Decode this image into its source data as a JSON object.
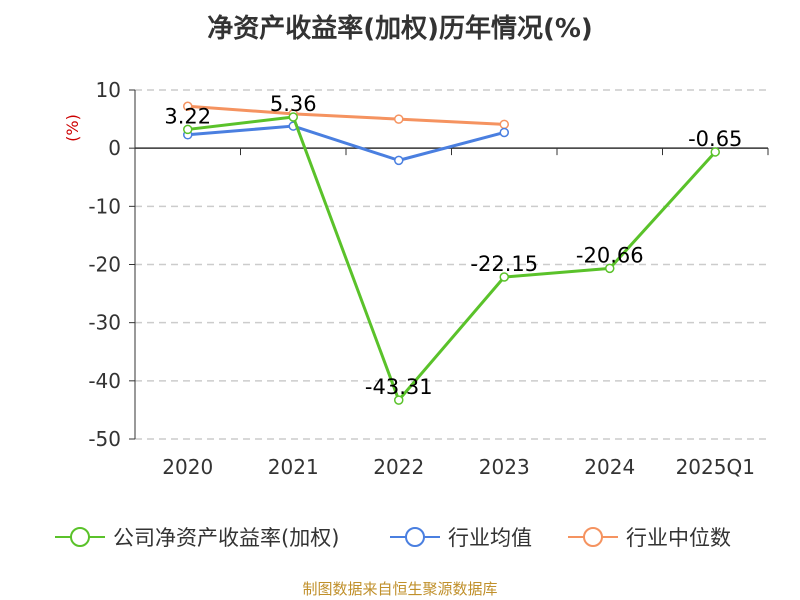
{
  "chart_data": {
    "type": "line",
    "title": "净资产收益率(加权)历年情况(%)",
    "ylabel": "(%)",
    "ylim": [
      -50,
      10
    ],
    "yticks": [
      10,
      0,
      -10,
      -20,
      -30,
      -40,
      -50
    ],
    "categories": [
      "2020",
      "2021",
      "2022",
      "2023",
      "2024",
      "2025Q1"
    ],
    "grid": true,
    "legend_position": "bottom",
    "series": [
      {
        "name": "公司净资产收益率(加权)",
        "color": "#5ac22a",
        "values": [
          3.22,
          5.36,
          -43.31,
          -22.15,
          -20.66,
          -0.65
        ],
        "labels": [
          "3.22",
          "5.36",
          "-43.31",
          "-22.15",
          "-20.66",
          "-0.65"
        ]
      },
      {
        "name": "行业均值",
        "color": "#4a7fe0",
        "values": [
          2.3,
          3.8,
          -2.1,
          2.7,
          null,
          null
        ]
      },
      {
        "name": "行业中位数",
        "color": "#f59360",
        "values": [
          7.2,
          5.9,
          5.0,
          4.1,
          null,
          null
        ]
      }
    ]
  },
  "colors": {
    "axis": "#333333",
    "grid": "#cccccc",
    "unit": "#cc0000",
    "source": "#c0902b"
  },
  "footer": {
    "source_text": "制图数据来自恒生聚源数据库"
  }
}
